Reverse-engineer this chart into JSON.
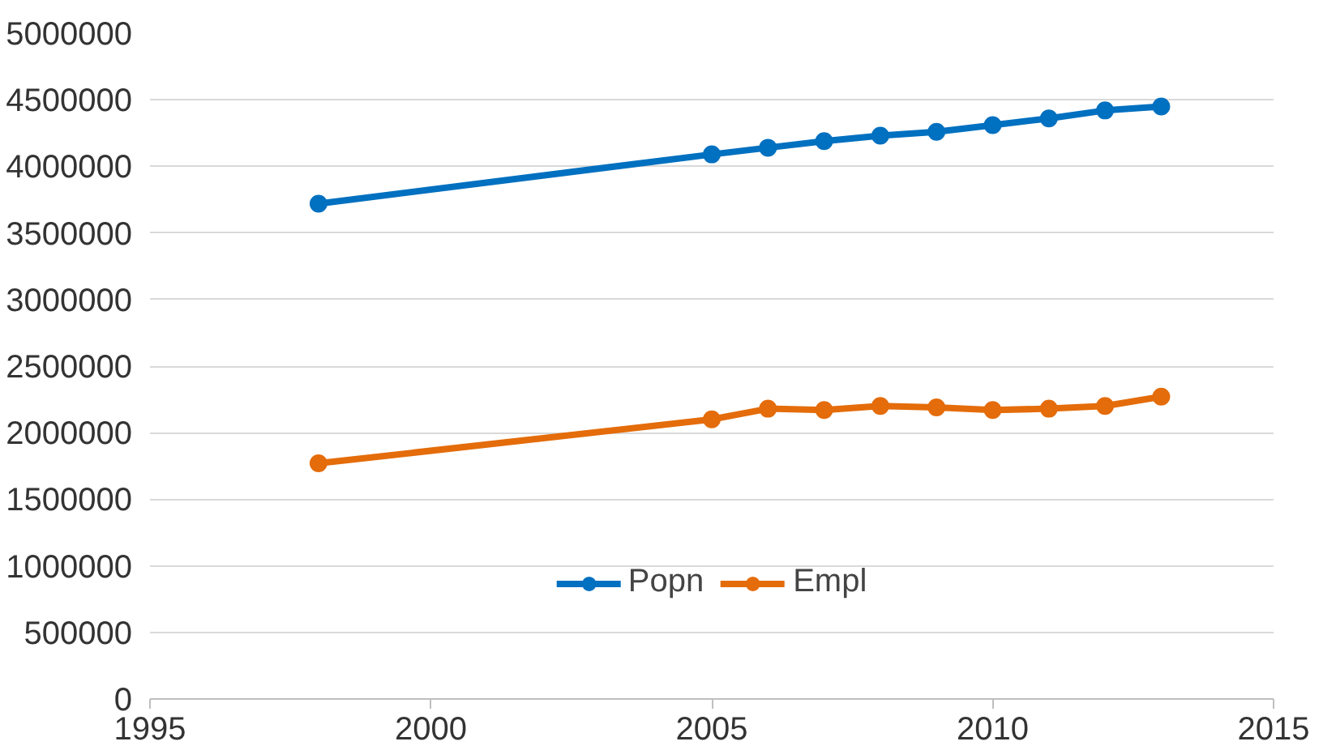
{
  "chart_data": {
    "type": "line",
    "x": [
      1998,
      2005,
      2006,
      2007,
      2008,
      2009,
      2010,
      2011,
      2012,
      2013
    ],
    "series": [
      {
        "name": "Popn",
        "color": "#0070c0",
        "values": [
          3720000,
          4090000,
          4140000,
          4190000,
          4230000,
          4260000,
          4310000,
          4360000,
          4420000,
          4450000
        ]
      },
      {
        "name": "Empl",
        "color": "#e46c0a",
        "values": [
          1770000,
          2100000,
          2180000,
          2170000,
          2200000,
          2190000,
          2170000,
          2180000,
          2200000,
          2270000
        ]
      }
    ],
    "xlim": [
      1995,
      2015
    ],
    "xticks": [
      1995,
      2000,
      2005,
      2010,
      2015
    ],
    "ylim": [
      0,
      5000000
    ],
    "yticks": [
      0,
      500000,
      1000000,
      1500000,
      2000000,
      2500000,
      3000000,
      3500000,
      4000000,
      4500000,
      5000000
    ],
    "grid": "y",
    "legend": "bottom",
    "marker": "circle",
    "line_style": "solid"
  }
}
